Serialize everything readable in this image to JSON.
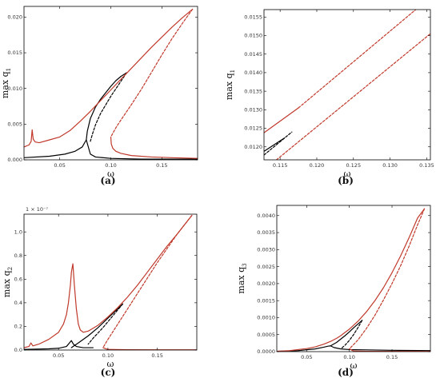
{
  "chart_data": [
    {
      "type": "line",
      "caption": "(a)",
      "xlabel": "ω",
      "ylabel": "max q",
      "ylabel_sub": "1",
      "multiplier": "",
      "xlim": [
        0.015,
        0.185
      ],
      "ylim": [
        0.0,
        0.0215
      ],
      "xticks": [
        0.05,
        0.1,
        0.15
      ],
      "xtick_labels": [
        "0.05",
        "0.10",
        "0.15"
      ],
      "yticks": [
        0.0,
        0.005,
        0.01,
        0.015,
        0.02
      ],
      "ytick_labels": [
        "0.000",
        "0.005",
        "0.010",
        "0.015",
        "0.020"
      ],
      "series": [
        {
          "color": "#000000",
          "dash": false,
          "x": [
            0.015,
            0.04,
            0.055,
            0.065,
            0.072,
            0.076,
            0.08,
            0.085,
            0.1,
            0.13,
            0.16,
            0.185
          ],
          "y": [
            0.0003,
            0.0005,
            0.0008,
            0.0012,
            0.0018,
            0.0028,
            0.0008,
            0.0004,
            0.0002,
            0.0001,
            0.0001,
            0.0001
          ]
        },
        {
          "color": "#000000",
          "dash": false,
          "x": [
            0.076,
            0.077,
            0.08,
            0.085,
            0.09,
            0.095,
            0.1,
            0.105,
            0.11,
            0.1155
          ],
          "y": [
            0.0028,
            0.004,
            0.0058,
            0.0074,
            0.0085,
            0.0094,
            0.0103,
            0.0111,
            0.0117,
            0.0122
          ]
        },
        {
          "color": "#000000",
          "dash": true,
          "x": [
            0.1155,
            0.1,
            0.09,
            0.085,
            0.082,
            0.08
          ],
          "y": [
            0.0122,
            0.0089,
            0.0065,
            0.0049,
            0.0036,
            0.0026
          ]
        },
        {
          "color": "#c0392b",
          "dash": false,
          "x": [
            0.015,
            0.02,
            0.022,
            0.023,
            0.024,
            0.026,
            0.03,
            0.04,
            0.05,
            0.06,
            0.07,
            0.08,
            0.09,
            0.1,
            0.11,
            0.12,
            0.13,
            0.14,
            0.15,
            0.16,
            0.17,
            0.18
          ],
          "y": [
            0.0018,
            0.0021,
            0.0026,
            0.0042,
            0.0029,
            0.0025,
            0.0024,
            0.0028,
            0.0032,
            0.0041,
            0.0054,
            0.0068,
            0.0083,
            0.0098,
            0.0113,
            0.0128,
            0.0143,
            0.0158,
            0.0172,
            0.0186,
            0.0199,
            0.0211
          ]
        },
        {
          "color": "#c0392b",
          "dash": true,
          "x": [
            0.18,
            0.17,
            0.16,
            0.15,
            0.14,
            0.13,
            0.12,
            0.11,
            0.105,
            0.1
          ],
          "y": [
            0.0211,
            0.0191,
            0.017,
            0.0147,
            0.0123,
            0.0099,
            0.0077,
            0.0056,
            0.0045,
            0.0032
          ]
        },
        {
          "color": "#c0392b",
          "dash": false,
          "x": [
            0.1,
            0.1005,
            0.102,
            0.105,
            0.11,
            0.12,
            0.14,
            0.16,
            0.185
          ],
          "y": [
            0.0032,
            0.0022,
            0.0016,
            0.0012,
            0.0009,
            0.0006,
            0.0004,
            0.0003,
            0.0002
          ]
        }
      ]
    },
    {
      "type": "line",
      "caption": "(b)",
      "xlabel": "ω",
      "ylabel": "max q",
      "ylabel_sub": "1",
      "multiplier": "",
      "xlim": [
        0.1128,
        0.1355
      ],
      "ylim": [
        0.01165,
        0.0157
      ],
      "xticks": [
        0.115,
        0.12,
        0.125,
        0.13,
        0.135
      ],
      "xtick_labels": [
        "0.115",
        "0.120",
        "0.125",
        "0.130",
        "0.135"
      ],
      "yticks": [
        0.012,
        0.0125,
        0.013,
        0.0135,
        0.014,
        0.0145,
        0.015,
        0.0155
      ],
      "ytick_labels": [
        "0.0120",
        "0.0125",
        "0.0130",
        "0.0135",
        "0.0140",
        "0.0145",
        "0.0150",
        "0.0155"
      ],
      "series": [
        {
          "color": "#c0392b",
          "dash": false,
          "x": [
            0.1128,
            0.1175
          ],
          "y": [
            0.01238,
            0.01305
          ]
        },
        {
          "color": "#c0392b",
          "dash": true,
          "x": [
            0.1175,
            0.1335
          ],
          "y": [
            0.01305,
            0.0157
          ]
        },
        {
          "color": "#c0392b",
          "dash": true,
          "x": [
            0.1145,
            0.1355
          ],
          "y": [
            0.01165,
            0.01505
          ]
        },
        {
          "color": "#000000",
          "dash": false,
          "x": [
            0.1128,
            0.1156
          ],
          "y": [
            0.01188,
            0.01224
          ]
        },
        {
          "color": "#000000",
          "dash": true,
          "x": [
            0.1128,
            0.1166
          ],
          "y": [
            0.01178,
            0.0124
          ]
        }
      ]
    },
    {
      "type": "line",
      "caption": "(c)",
      "xlabel": "ω",
      "ylabel": "max q",
      "ylabel_sub": "2",
      "multiplier": "1 × 10⁻⁷",
      "xlim": [
        0.015,
        0.19
      ],
      "ylim": [
        0.0,
        1.15
      ],
      "xticks": [
        0.05,
        0.1,
        0.15
      ],
      "xtick_labels": [
        "0.05",
        "0.10",
        "0.15"
      ],
      "yticks": [
        0.0,
        0.2,
        0.4,
        0.6,
        0.8,
        1.0
      ],
      "ytick_labels": [
        "0.0",
        "0.2",
        "0.4",
        "0.6",
        "0.8",
        "1.0"
      ],
      "series": [
        {
          "color": "#000000",
          "dash": false,
          "x": [
            0.015,
            0.04,
            0.05,
            0.058,
            0.061,
            0.063,
            0.065,
            0.068,
            0.075,
            0.085
          ],
          "y": [
            0.005,
            0.01,
            0.015,
            0.03,
            0.06,
            0.08,
            0.05,
            0.03,
            0.02,
            0.02
          ]
        },
        {
          "color": "#000000",
          "dash": false,
          "x": [
            0.063,
            0.07,
            0.08,
            0.09,
            0.1,
            0.105,
            0.11,
            0.115
          ],
          "y": [
            0.02,
            0.06,
            0.12,
            0.19,
            0.27,
            0.31,
            0.35,
            0.39
          ]
        },
        {
          "color": "#000000",
          "dash": true,
          "x": [
            0.115,
            0.105,
            0.095,
            0.085,
            0.08
          ],
          "y": [
            0.39,
            0.29,
            0.19,
            0.1,
            0.05
          ]
        },
        {
          "color": "#c0392b",
          "dash": false,
          "x": [
            0.015,
            0.02,
            0.022,
            0.024,
            0.03,
            0.04,
            0.05,
            0.055,
            0.058,
            0.06,
            0.062,
            0.063,
            0.0645,
            0.066,
            0.068,
            0.07,
            0.072,
            0.075,
            0.08,
            0.09,
            0.1,
            0.11,
            0.12,
            0.13,
            0.14,
            0.15,
            0.16,
            0.17,
            0.185
          ],
          "y": [
            0.02,
            0.03,
            0.06,
            0.035,
            0.05,
            0.09,
            0.15,
            0.22,
            0.3,
            0.4,
            0.55,
            0.66,
            0.73,
            0.55,
            0.35,
            0.22,
            0.17,
            0.15,
            0.16,
            0.21,
            0.28,
            0.36,
            0.45,
            0.55,
            0.66,
            0.77,
            0.88,
            0.98,
            1.14
          ]
        },
        {
          "color": "#c0392b",
          "dash": true,
          "x": [
            0.185,
            0.17,
            0.16,
            0.15,
            0.14,
            0.13,
            0.12,
            0.11,
            0.1,
            0.095
          ],
          "y": [
            1.14,
            0.98,
            0.86,
            0.74,
            0.61,
            0.48,
            0.35,
            0.22,
            0.09,
            0.02
          ]
        },
        {
          "color": "#c0392b",
          "dash": false,
          "x": [
            0.095,
            0.1,
            0.12,
            0.15,
            0.19
          ],
          "y": [
            0.02,
            0.005,
            0.003,
            0.002,
            0.002
          ]
        }
      ]
    },
    {
      "type": "line",
      "caption": "(d)",
      "xlabel": "ω",
      "ylabel": "max q",
      "ylabel_sub": "3",
      "multiplier": "",
      "xlim": [
        0.015,
        0.195
      ],
      "ylim": [
        0.0,
        0.0043
      ],
      "xticks": [
        0.05,
        0.1,
        0.15
      ],
      "xtick_labels": [
        "0.05",
        "0.10",
        "0.15"
      ],
      "yticks": [
        0.0,
        0.0005,
        0.001,
        0.0015,
        0.002,
        0.0025,
        0.003,
        0.0035,
        0.004
      ],
      "ytick_labels": [
        "0.0000",
        "0.0005",
        "0.0010",
        "0.0015",
        "0.0020",
        "0.0025",
        "0.0030",
        "0.0035",
        "0.0040"
      ],
      "series": [
        {
          "color": "#000000",
          "dash": false,
          "x": [
            0.015,
            0.04,
            0.06,
            0.07,
            0.075,
            0.078,
            0.082,
            0.09,
            0.1,
            0.15,
            0.195
          ],
          "y": [
            1e-05,
            3e-05,
            8e-05,
            0.00013,
            0.00016,
            0.00017,
            0.00012,
            8e-05,
            6e-05,
            4e-05,
            3e-05
          ]
        },
        {
          "color": "#000000",
          "dash": false,
          "x": [
            0.078,
            0.085,
            0.09,
            0.095,
            0.1,
            0.105,
            0.11,
            0.115
          ],
          "y": [
            0.00017,
            0.00027,
            0.00037,
            0.00047,
            0.00058,
            0.0007,
            0.00081,
            0.00092
          ]
        },
        {
          "color": "#000000",
          "dash": true,
          "x": [
            0.115,
            0.11,
            0.105,
            0.1,
            0.095,
            0.09
          ],
          "y": [
            0.00092,
            0.0007,
            0.0005,
            0.00033,
            0.00019,
            8e-05
          ]
        },
        {
          "color": "#c0392b",
          "dash": false,
          "x": [
            0.015,
            0.03,
            0.05,
            0.06,
            0.07,
            0.078,
            0.085,
            0.09,
            0.1,
            0.11,
            0.12,
            0.13,
            0.14,
            0.15,
            0.16,
            0.17,
            0.18,
            0.188
          ],
          "y": [
            1e-05,
            3e-05,
            9e-05,
            0.00014,
            0.00022,
            0.0003,
            0.00039,
            0.00047,
            0.00066,
            0.00089,
            0.00117,
            0.0015,
            0.00188,
            0.00232,
            0.00281,
            0.00335,
            0.00393,
            0.0042
          ]
        },
        {
          "color": "#c0392b",
          "dash": true,
          "x": [
            0.188,
            0.18,
            0.17,
            0.16,
            0.15,
            0.14,
            0.13,
            0.12,
            0.11,
            0.1
          ],
          "y": [
            0.0042,
            0.00373,
            0.0031,
            0.00252,
            0.002,
            0.00152,
            0.00107,
            0.00068,
            0.00034,
            8e-05
          ]
        },
        {
          "color": "#c0392b",
          "dash": false,
          "x": [
            0.1,
            0.105,
            0.12,
            0.15,
            0.195
          ],
          "y": [
            8e-05,
            2e-05,
            1e-05,
            1e-05,
            1e-05
          ]
        }
      ]
    }
  ]
}
